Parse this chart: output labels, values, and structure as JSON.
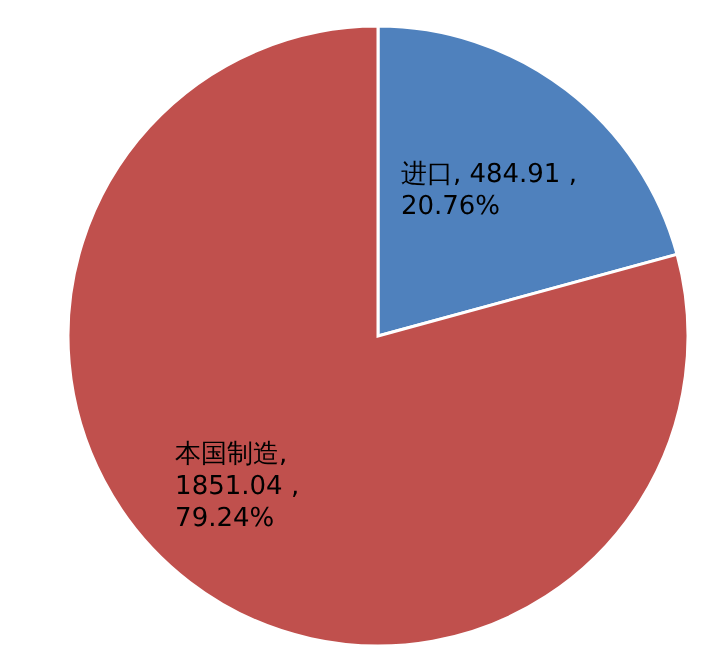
{
  "chart_data": {
    "type": "pie",
    "categories": [
      "进口",
      "本国制造"
    ],
    "values": [
      484.91,
      1851.04
    ],
    "colors": [
      "#4f81bd",
      "#c0504d"
    ],
    "value_labels": [
      ", 484.91 , 20.76%",
      ", 1851.04 , 79.24%"
    ]
  }
}
